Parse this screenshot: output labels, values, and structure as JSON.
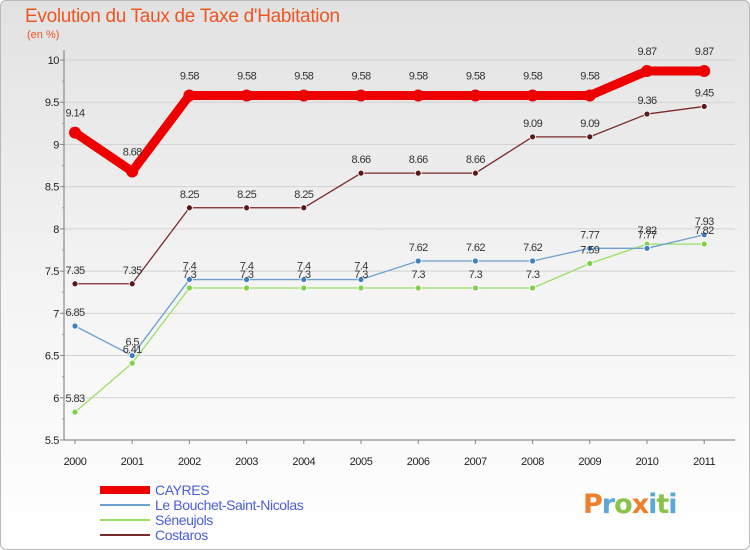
{
  "header": {
    "title": "Evolution du Taux de Taxe d'Habitation",
    "unit": "(en %)"
  },
  "chart_data": {
    "type": "line",
    "title": "Evolution du Taux de Taxe d'Habitation",
    "ylabel": "(en %)",
    "xlabel": "",
    "categories": [
      "2000",
      "2001",
      "2002",
      "2003",
      "2004",
      "2005",
      "2006",
      "2007",
      "2008",
      "2009",
      "2010",
      "2011"
    ],
    "ylim": [
      5.5,
      10
    ],
    "yticks": [
      "5.5",
      "6",
      "6.5",
      "7",
      "7.5",
      "8",
      "8.5",
      "9",
      "9.5",
      "10"
    ],
    "series": [
      {
        "name": "CAYRES",
        "color": "#ee0000",
        "values": [
          9.14,
          8.68,
          9.58,
          9.58,
          9.58,
          9.58,
          9.58,
          9.58,
          9.58,
          9.58,
          9.87,
          9.87
        ],
        "labels": [
          "9.14",
          "8.68",
          "9.58",
          "9.58",
          "9.58",
          "9.58",
          "9.58",
          "9.58",
          "9.58",
          "9.58",
          "9.87",
          "9.87"
        ]
      },
      {
        "name": "Le Bouchet-Saint-Nicolas",
        "color": "#6fa1d0",
        "values": [
          6.85,
          6.5,
          7.4,
          7.4,
          7.4,
          7.4,
          7.62,
          7.62,
          7.62,
          7.77,
          7.77,
          7.93
        ],
        "labels": [
          "6.85",
          "6.5",
          "7.4",
          "7.4",
          "7.4",
          "7.4",
          "7.62",
          "7.62",
          "7.62",
          "7.77",
          "7.77",
          "7.93"
        ]
      },
      {
        "name": "Séneujols",
        "color": "#99e064",
        "values": [
          5.83,
          6.41,
          7.3,
          7.3,
          7.3,
          7.3,
          7.3,
          7.3,
          7.3,
          7.59,
          7.82,
          7.82
        ],
        "labels": [
          "5.83",
          "6.41",
          "7.3",
          "7.3",
          "7.3",
          "7.3",
          "7.3",
          "7.3",
          "7.3",
          "7.59",
          "7.82",
          "7.82"
        ]
      },
      {
        "name": "Costaros",
        "color": "#7a2a2a",
        "values": [
          7.35,
          7.35,
          8.25,
          8.25,
          8.25,
          8.66,
          8.66,
          8.66,
          9.09,
          9.09,
          9.36,
          9.45
        ],
        "labels": [
          "7.35",
          "7.35",
          "8.25",
          "8.25",
          "8.25",
          "8.66",
          "8.66",
          "8.66",
          "9.09",
          "9.09",
          "9.36",
          "9.45"
        ]
      }
    ],
    "legend_position": "bottom-left"
  },
  "logo": {
    "text": "Proxiti"
  }
}
